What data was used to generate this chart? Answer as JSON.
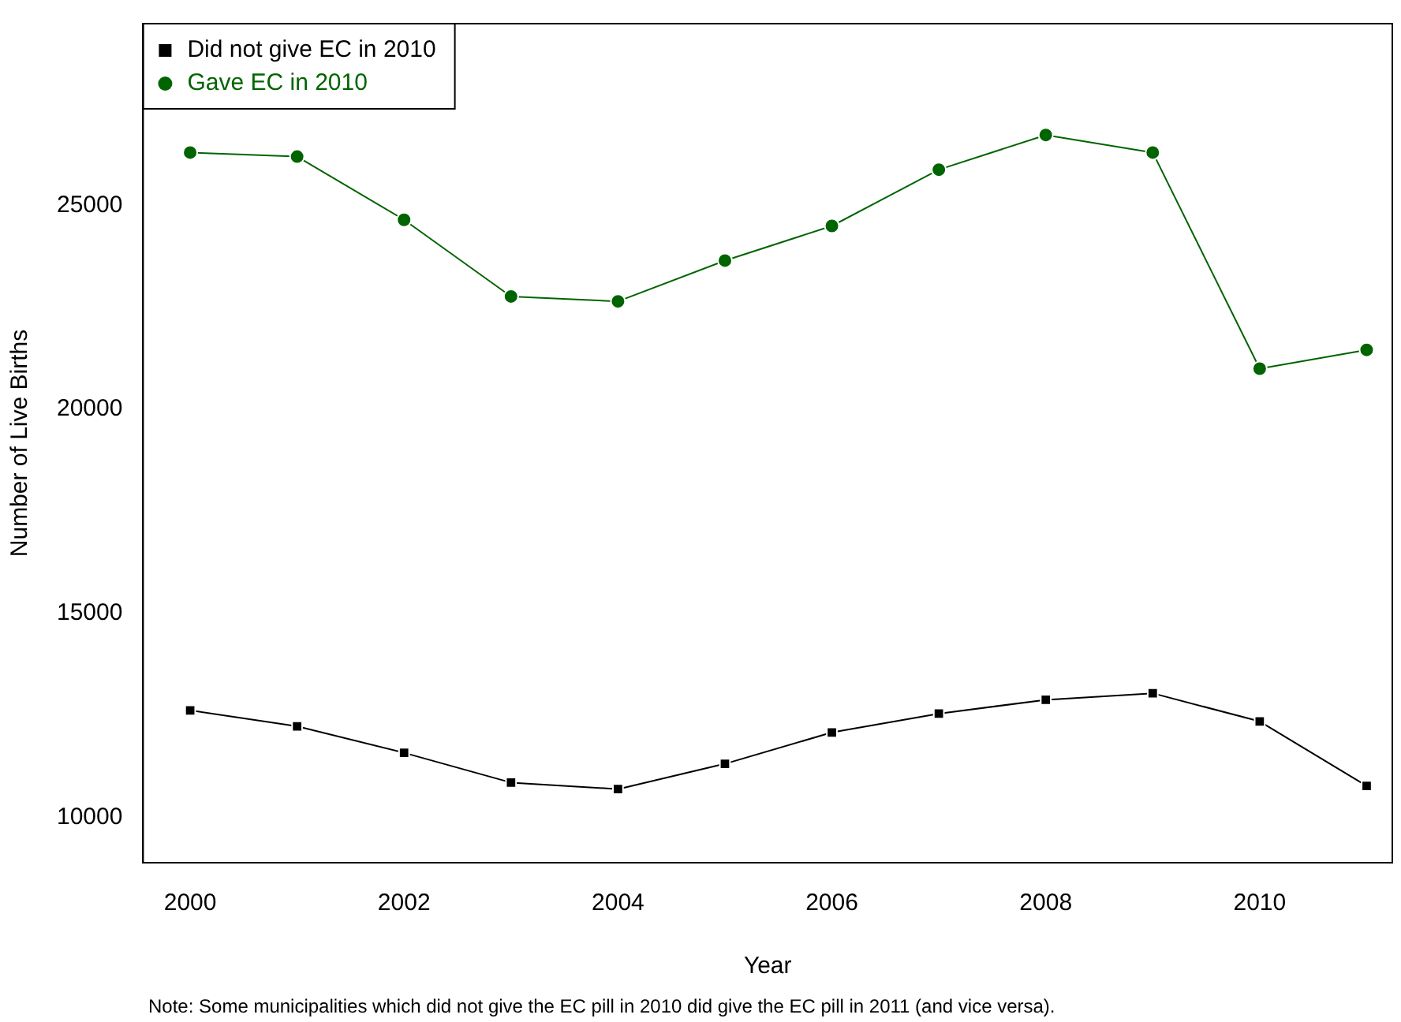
{
  "chart_data": {
    "type": "line",
    "xlabel": "Year",
    "ylabel": "Number of Live Births",
    "x": [
      2000,
      2001,
      2002,
      2003,
      2004,
      2005,
      2006,
      2007,
      2008,
      2009,
      2010,
      2011
    ],
    "series": [
      {
        "name": "Did not give EC in 2010",
        "color": "#000000",
        "marker": "square",
        "values": [
          12620,
          12230,
          11580,
          10850,
          10690,
          11310,
          12080,
          12540,
          12880,
          13040,
          12350,
          10770
        ]
      },
      {
        "name": "Gave EC in 2010",
        "color": "#006400",
        "marker": "circle",
        "values": [
          26300,
          26200,
          24650,
          22770,
          22650,
          23650,
          24500,
          25880,
          26730,
          26300,
          21000,
          21460
        ]
      }
    ],
    "xlim": [
      1999.56,
      2011.24
    ],
    "xticks": [
      2000,
      2002,
      2004,
      2006,
      2008,
      2010
    ],
    "ylim": [
      8885,
      29460
    ],
    "yticks": [
      10000,
      15000,
      20000,
      25000
    ],
    "grid": false,
    "legend": "top left",
    "annotations": [
      "Note: Some municipalities which did not give the EC pill in 2010 did give the EC pill in 2011 (and vice versa)."
    ]
  }
}
